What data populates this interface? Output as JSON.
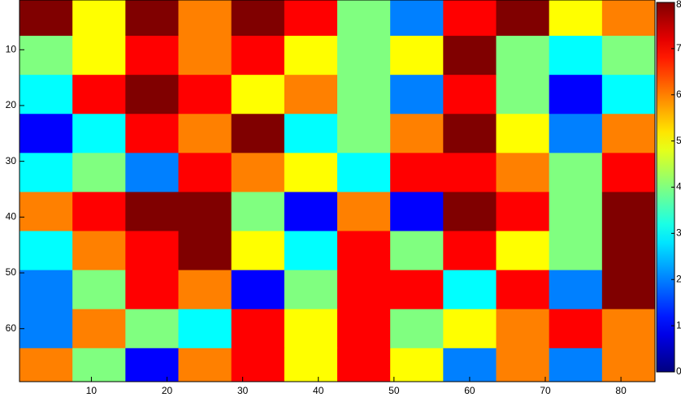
{
  "chart_data": {
    "type": "heatmap",
    "colormap": "jet",
    "x": [
      4,
      11,
      18,
      25,
      32,
      39,
      46,
      53,
      60,
      67,
      74,
      81
    ],
    "y": [
      4,
      11,
      18,
      25,
      32,
      39,
      46,
      53,
      60,
      67
    ],
    "values": [
      [
        8,
        5,
        8,
        6,
        8,
        7,
        4,
        2,
        7,
        8,
        5,
        6
      ],
      [
        4,
        5,
        7,
        6,
        7,
        5,
        4,
        5,
        8,
        4,
        3,
        4
      ],
      [
        3,
        7,
        8,
        7,
        5,
        6,
        4,
        2,
        7,
        4,
        1,
        3
      ],
      [
        1,
        3,
        7,
        6,
        8,
        3,
        4,
        6,
        8,
        5,
        2,
        6
      ],
      [
        3,
        4,
        2,
        7,
        6,
        5,
        3,
        7,
        7,
        6,
        4,
        7
      ],
      [
        6,
        7,
        8,
        8,
        4,
        1,
        6,
        1,
        8,
        7,
        4,
        8
      ],
      [
        3,
        6,
        7,
        8,
        5,
        3,
        7,
        4,
        7,
        5,
        4,
        8
      ],
      [
        2,
        4,
        7,
        6,
        1,
        4,
        7,
        7,
        3,
        7,
        2,
        8
      ],
      [
        2,
        6,
        4,
        3,
        7,
        5,
        7,
        4,
        5,
        6,
        7,
        6
      ],
      [
        6,
        4,
        1,
        6,
        7,
        5,
        7,
        5,
        2,
        6,
        2,
        6
      ]
    ],
    "xlim": [
      0.5,
      84.5
    ],
    "xticks": [
      10,
      20,
      30,
      40,
      50,
      60,
      70,
      80
    ],
    "ylim": [
      0.5,
      69.5
    ],
    "yticks": [
      10,
      20,
      30,
      40,
      50,
      60
    ],
    "clim": [
      0,
      8
    ],
    "cticks": [
      0,
      1,
      2,
      3,
      4,
      5,
      6,
      7,
      8
    ]
  }
}
